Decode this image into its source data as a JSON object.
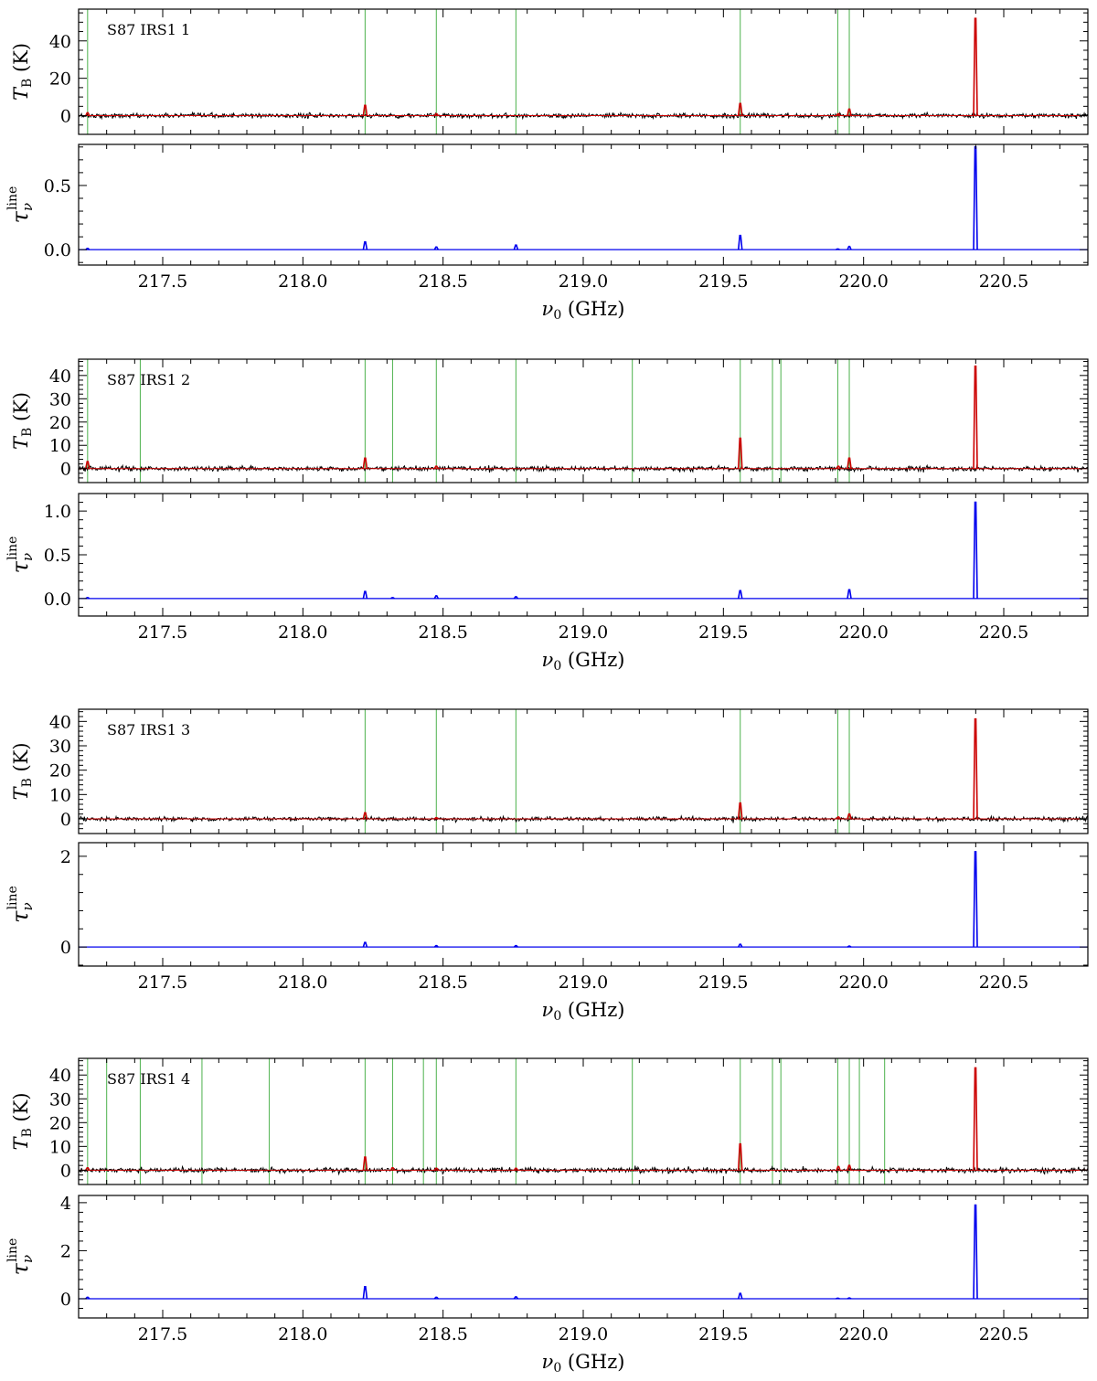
{
  "chart_data": [
    {
      "type": "line",
      "title": "S87 IRS1 1",
      "xlabel": "ν₀ (GHz)",
      "xlim": [
        217.2,
        220.8
      ],
      "xticks": [
        "217.5",
        "218.0",
        "218.5",
        "219.0",
        "219.5",
        "220.0",
        "220.5"
      ],
      "top": {
        "ylabel": "T_B (K)",
        "ylim": [
          -10,
          57
        ],
        "yticks": [
          "0",
          "20",
          "40"
        ],
        "series": [
          {
            "color": "#000000",
            "noise_sigma": 0.6
          },
          {
            "color": "#cc0000",
            "lines": [
              [
                217.232,
                1.5
              ],
              [
                218.222,
                5.5
              ],
              [
                218.476,
                1.0
              ],
              [
                219.56,
                6.5
              ],
              [
                219.91,
                1.0
              ],
              [
                219.949,
                3.5
              ],
              [
                220.399,
                52
              ]
            ]
          }
        ]
      },
      "markers": [
        217.232,
        218.222,
        218.476,
        218.76,
        219.56,
        219.908,
        219.949
      ],
      "bottom": {
        "ylabel": "τ_ν^line",
        "ylim": [
          -0.12,
          0.82
        ],
        "yticks": [
          "0.0",
          "0.5"
        ],
        "series": [
          {
            "color": "#0000ee",
            "lines": [
              [
                217.232,
                0.01
              ],
              [
                218.222,
                0.06
              ],
              [
                218.476,
                0.02
              ],
              [
                218.76,
                0.035
              ],
              [
                219.56,
                0.11
              ],
              [
                219.908,
                0.005
              ],
              [
                219.949,
                0.025
              ],
              [
                220.399,
                0.8
              ]
            ]
          }
        ]
      }
    },
    {
      "type": "line",
      "title": "S87 IRS1 2",
      "xlabel": "ν₀ (GHz)",
      "xlim": [
        217.2,
        220.8
      ],
      "xticks": [
        "217.5",
        "218.0",
        "218.5",
        "219.0",
        "219.5",
        "220.0",
        "220.5"
      ],
      "top": {
        "ylabel": "T_B (K)",
        "ylim": [
          -6,
          47
        ],
        "yticks": [
          "0",
          "10",
          "20",
          "30",
          "40"
        ],
        "series": [
          {
            "color": "#000000",
            "noise_sigma": 0.5
          },
          {
            "color": "#cc0000",
            "lines": [
              [
                217.232,
                3.0
              ],
              [
                218.222,
                4.5
              ],
              [
                218.476,
                1.0
              ],
              [
                219.56,
                13
              ],
              [
                219.91,
                1.0
              ],
              [
                219.949,
                4.5
              ],
              [
                220.399,
                44
              ]
            ]
          }
        ]
      },
      "markers": [
        217.232,
        217.42,
        218.222,
        218.32,
        218.476,
        218.76,
        219.175,
        219.56,
        219.675,
        219.705,
        219.908,
        219.949
      ],
      "bottom": {
        "ylabel": "τ_ν^line",
        "ylim": [
          -0.2,
          1.2
        ],
        "yticks": [
          "0.0",
          "0.5",
          "1.0"
        ],
        "series": [
          {
            "color": "#0000ee",
            "lines": [
              [
                217.232,
                0.01
              ],
              [
                218.222,
                0.08
              ],
              [
                218.32,
                0.01
              ],
              [
                218.476,
                0.03
              ],
              [
                218.76,
                0.02
              ],
              [
                219.56,
                0.09
              ],
              [
                219.949,
                0.1
              ],
              [
                220.399,
                1.1
              ]
            ]
          }
        ]
      }
    },
    {
      "type": "line",
      "title": "S87 IRS1 3",
      "xlabel": "ν₀ (GHz)",
      "xlim": [
        217.2,
        220.8
      ],
      "xticks": [
        "217.5",
        "218.0",
        "218.5",
        "219.0",
        "219.5",
        "220.0",
        "220.5"
      ],
      "top": {
        "ylabel": "T_B (K)",
        "ylim": [
          -6,
          45
        ],
        "yticks": [
          "0",
          "10",
          "20",
          "30",
          "40"
        ],
        "series": [
          {
            "color": "#000000",
            "noise_sigma": 0.4
          },
          {
            "color": "#cc0000",
            "lines": [
              [
                218.222,
                2.5
              ],
              [
                218.476,
                0.5
              ],
              [
                219.56,
                6.5
              ],
              [
                219.91,
                0.8
              ],
              [
                219.949,
                2.0
              ],
              [
                220.399,
                41
              ]
            ]
          }
        ]
      },
      "markers": [
        218.222,
        218.476,
        218.76,
        219.56,
        219.908,
        219.949
      ],
      "bottom": {
        "ylabel": "τ_ν^line",
        "ylim": [
          -0.42,
          2.3
        ],
        "yticks": [
          "0",
          "2"
        ],
        "series": [
          {
            "color": "#0000ee",
            "lines": [
              [
                218.222,
                0.1
              ],
              [
                218.476,
                0.03
              ],
              [
                218.76,
                0.03
              ],
              [
                219.56,
                0.06
              ],
              [
                219.949,
                0.02
              ],
              [
                220.399,
                2.1
              ]
            ]
          }
        ]
      }
    },
    {
      "type": "line",
      "title": "S87 IRS1 4",
      "xlabel": "ν₀ (GHz)",
      "xlim": [
        217.2,
        220.8
      ],
      "xticks": [
        "217.5",
        "218.0",
        "218.5",
        "219.0",
        "219.5",
        "220.0",
        "220.5"
      ],
      "top": {
        "ylabel": "T_B (K)",
        "ylim": [
          -6,
          47
        ],
        "yticks": [
          "0",
          "10",
          "20",
          "30",
          "40"
        ],
        "series": [
          {
            "color": "#000000",
            "noise_sigma": 0.5
          },
          {
            "color": "#cc0000",
            "lines": [
              [
                217.232,
                1.0
              ],
              [
                218.222,
                5.5
              ],
              [
                218.32,
                1.0
              ],
              [
                218.476,
                0.8
              ],
              [
                218.76,
                0.8
              ],
              [
                219.56,
                11
              ],
              [
                219.91,
                1.5
              ],
              [
                219.949,
                2.0
              ],
              [
                220.399,
                43
              ]
            ]
          }
        ]
      },
      "markers": [
        217.232,
        217.3,
        217.42,
        217.64,
        217.88,
        218.222,
        218.32,
        218.43,
        218.476,
        218.76,
        219.175,
        219.56,
        219.675,
        219.705,
        219.908,
        219.949,
        219.985,
        220.075
      ],
      "bottom": {
        "ylabel": "τ_ν^line",
        "ylim": [
          -0.8,
          4.3
        ],
        "yticks": [
          "0",
          "2",
          "4"
        ],
        "series": [
          {
            "color": "#0000ee",
            "lines": [
              [
                217.232,
                0.06
              ],
              [
                218.222,
                0.5
              ],
              [
                218.476,
                0.06
              ],
              [
                218.76,
                0.08
              ],
              [
                219.56,
                0.22
              ],
              [
                219.908,
                0.02
              ],
              [
                219.949,
                0.03
              ],
              [
                220.399,
                3.9
              ]
            ]
          }
        ]
      }
    }
  ]
}
